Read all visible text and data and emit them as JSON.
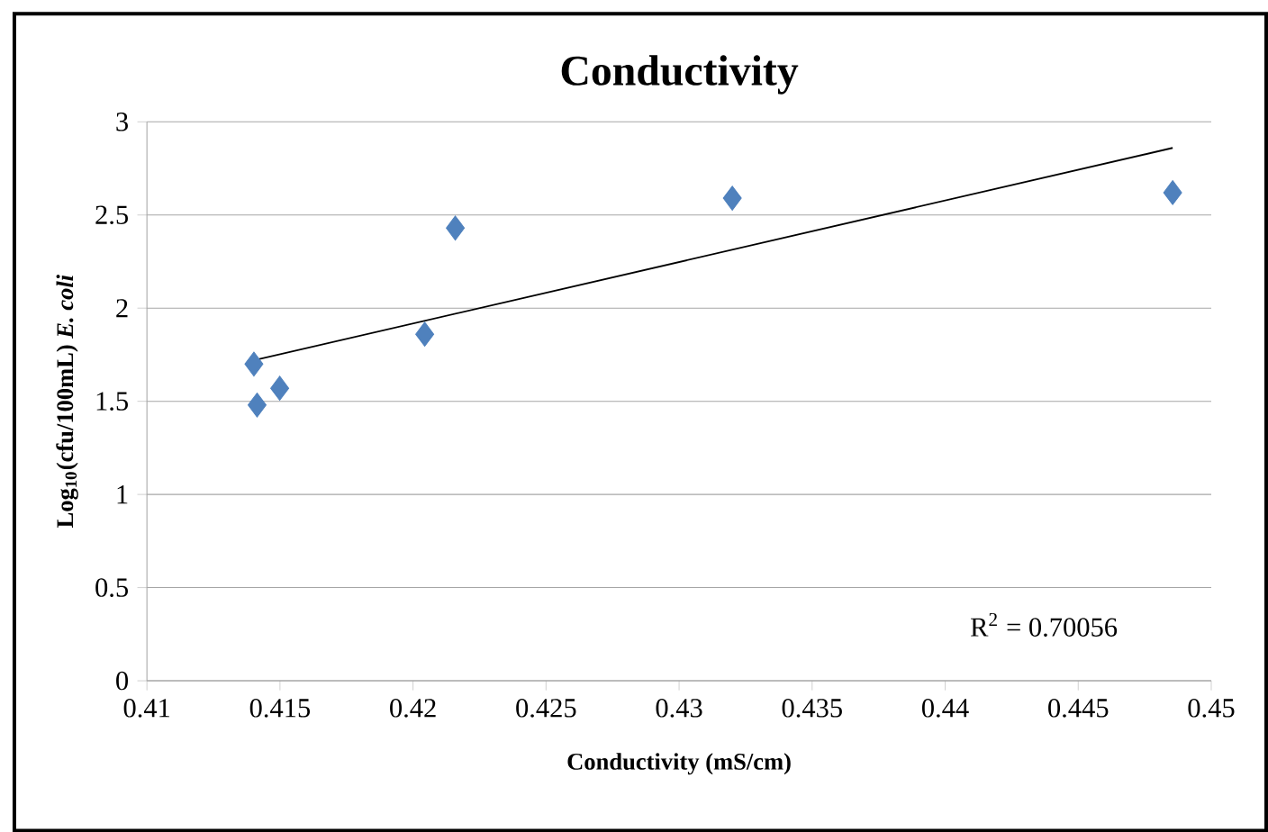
{
  "chart_data": {
    "type": "scatter",
    "title": "Conductivity",
    "xlabel": "Conductivity (mS/cm)",
    "ylabel": "Log$_{10}$(cfu/100mL) *E. coli*",
    "xlim": [
      0.41,
      0.45
    ],
    "xticks": [
      0.41,
      0.415,
      0.42,
      0.425,
      0.43,
      0.435,
      0.44,
      0.445,
      0.45
    ],
    "ylim": [
      0,
      3
    ],
    "yticks": [
      0,
      0.5,
      1,
      1.5,
      2,
      2.5,
      3
    ],
    "grid": "y",
    "series": [
      {
        "marker": "diamond",
        "color": "#4f81bd",
        "x": [
          0.41402,
          0.41414,
          0.41499,
          0.42044,
          0.42159,
          0.432,
          0.44855
        ],
        "values": [
          1.7,
          1.48,
          1.57,
          1.86,
          2.43,
          2.59,
          2.62
        ]
      },
      {
        "type": "line",
        "marker": "none",
        "color": "#000000",
        "x": [
          0.41402,
          0.44855
        ],
        "values": [
          1.72,
          2.86
        ]
      }
    ],
    "annotations": [
      "R$^{2}$ = 0.70056"
    ]
  }
}
